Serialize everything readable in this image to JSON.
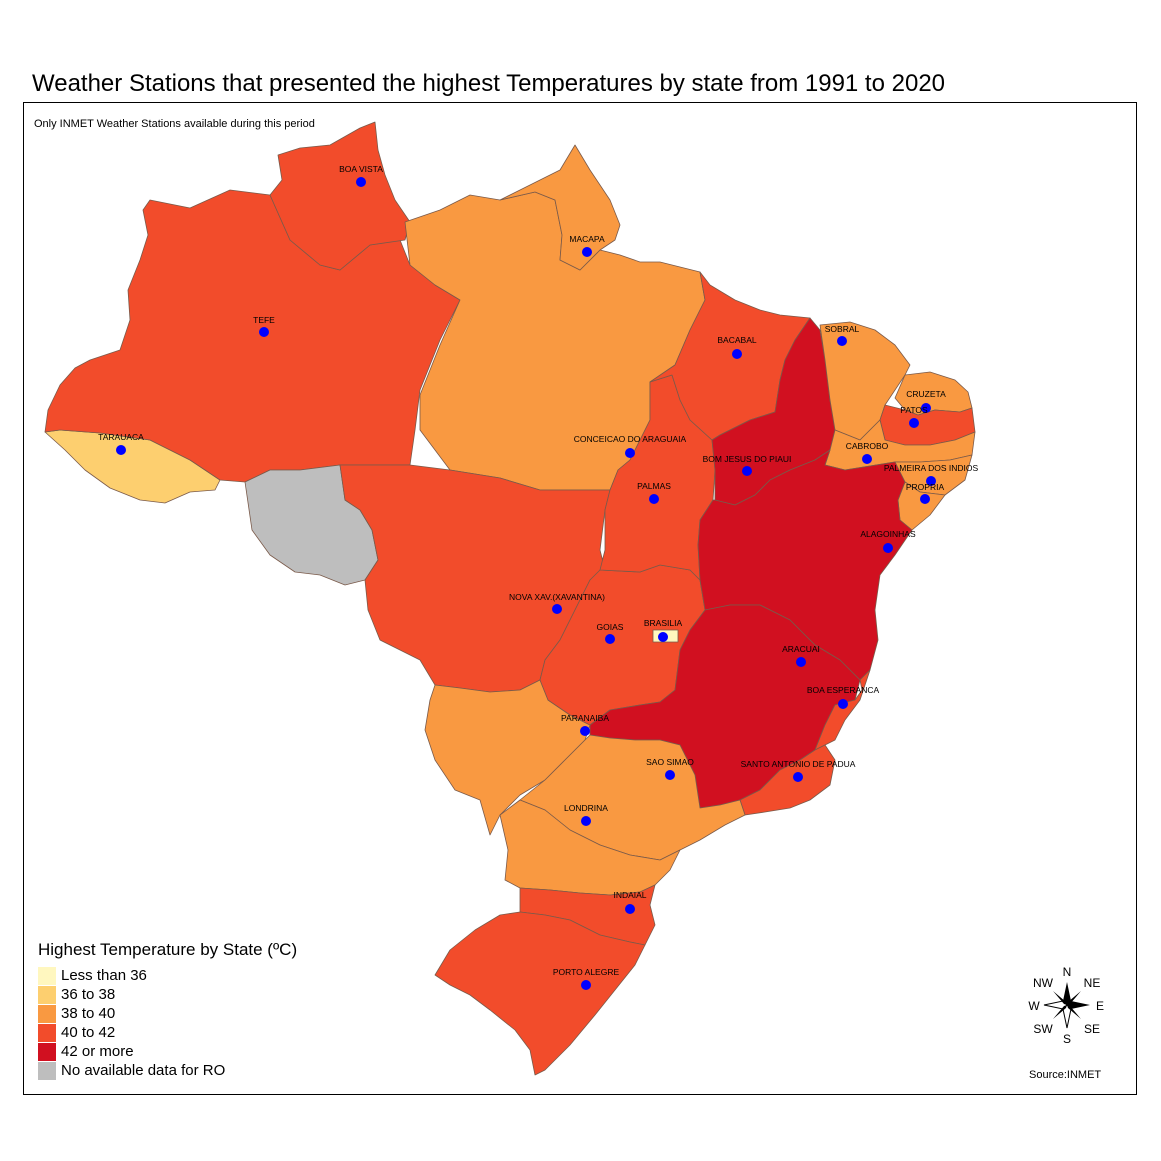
{
  "title": "Weather Stations that presented the highest Temperatures  by state from 1991 to 2020",
  "subtitle": "Only INMET Weather Stations available during this period",
  "source": "Source:INMET",
  "colors": {
    "less_than_36": "#fff7bf",
    "c36_38": "#fdcf6f",
    "c38_40": "#f99941",
    "c40_42": "#f24c2b",
    "c42_more": "#d11020",
    "no_data": "#bebebe",
    "station": "#0000ff",
    "border": "#7a5a4a"
  },
  "legend": {
    "title": "Highest Temperature by State (ºC)",
    "items": [
      {
        "label": "Less than 36",
        "color": "#fff7bf"
      },
      {
        "label": "36 to 38",
        "color": "#fdcf6f"
      },
      {
        "label": "38 to 40",
        "color": "#f99941"
      },
      {
        "label": "40 to 42",
        "color": "#f24c2b"
      },
      {
        "label": "42 or more",
        "color": "#d11020"
      },
      {
        "label": "No available data for RO",
        "color": "#bebebe"
      }
    ]
  },
  "stations": [
    {
      "name": "BOA VISTA"
    },
    {
      "name": "MACAPA"
    },
    {
      "name": "TEFE"
    },
    {
      "name": "TARAUACA"
    },
    {
      "name": "BACABAL"
    },
    {
      "name": "SOBRAL"
    },
    {
      "name": "CRUZETA"
    },
    {
      "name": "PATOS"
    },
    {
      "name": "CONCEICAO DO ARAGUAIA"
    },
    {
      "name": "CABROBO"
    },
    {
      "name": "BOM JESUS DO PIAUI"
    },
    {
      "name": "PALMEIRA DOS INDIOS"
    },
    {
      "name": "PALMAS"
    },
    {
      "name": "PROPRIA"
    },
    {
      "name": "ALAGOINHAS"
    },
    {
      "name": "NOVA XAV.(XAVANTINA)"
    },
    {
      "name": "BRASILIA"
    },
    {
      "name": "GOIAS"
    },
    {
      "name": "ARACUAI"
    },
    {
      "name": "BOA ESPERANCA"
    },
    {
      "name": "PARANAIBA"
    },
    {
      "name": "SAO SIMAO"
    },
    {
      "name": "SANTO ANTONIO DE PADUA"
    },
    {
      "name": "LONDRINA"
    },
    {
      "name": "INDAIAL"
    },
    {
      "name": "PORTO ALEGRE"
    }
  ],
  "compass": {
    "n": "N",
    "ne": "NE",
    "e": "E",
    "se": "SE",
    "s": "S",
    "sw": "SW",
    "w": "W",
    "nw": "NW"
  }
}
